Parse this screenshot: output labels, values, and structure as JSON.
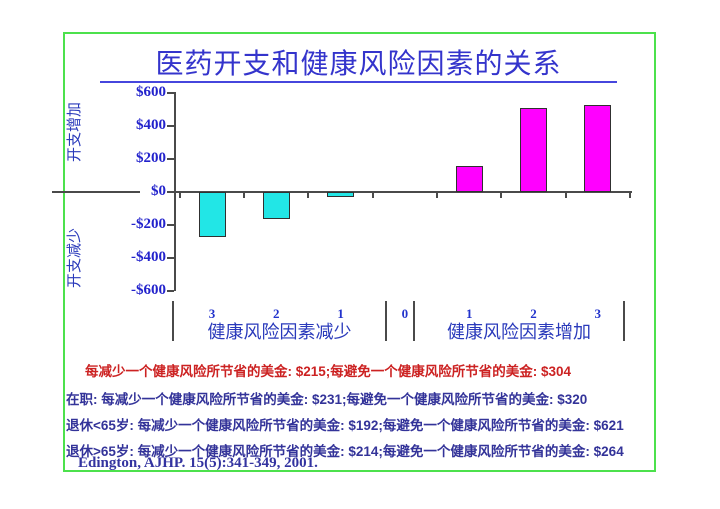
{
  "slide": {
    "title": "医药开支和健康风险因素的关系"
  },
  "chart_data": {
    "type": "bar",
    "title": "医药开支和健康风险因素的关系",
    "grid": false,
    "legend": "none",
    "y_axis": {
      "tick_labels": [
        "$600",
        "$400",
        "$200",
        "$0",
        "-$200",
        "-$400",
        "-$600"
      ],
      "tick_values": [
        600,
        400,
        200,
        0,
        -200,
        -400,
        -600
      ],
      "min": -600,
      "max": 600
    },
    "y_axis_title_top": "开支增加",
    "y_axis_title_bottom": "开支减少",
    "categories": [
      "3",
      "2",
      "1",
      "0",
      "1",
      "2",
      "3"
    ],
    "values": [
      -275,
      -165,
      -30,
      0,
      160,
      510,
      530
    ],
    "bar_colors": [
      "#22e6e6",
      "#22e6e6",
      "#22e6e6",
      null,
      "#ff00ff",
      "#ff00ff",
      "#ff00ff"
    ],
    "group_labels": {
      "left": "健康风险因素减少",
      "right": "健康风险因素增加"
    }
  },
  "notes": {
    "overall": "每减少一个健康风险所节省的美金: $215;每避免一个健康风险所节省的美金: $304",
    "active": "在职: 每减少一个健康风险所节省的美金: $231;每避免一个健康风险所节省的美金: $320",
    "retired_under_65": "退休<65岁: 每减少一个健康风险所节省的美金: $192;每避免一个健康风险所节省的美金: $621",
    "retired_over_65": "退休>65岁: 每减少一个健康风险所节省的美金: $214;每避免一个健康风险所节省的美金: $264",
    "citation": "Edington, AJHP. 15(5):341-349, 2001."
  }
}
